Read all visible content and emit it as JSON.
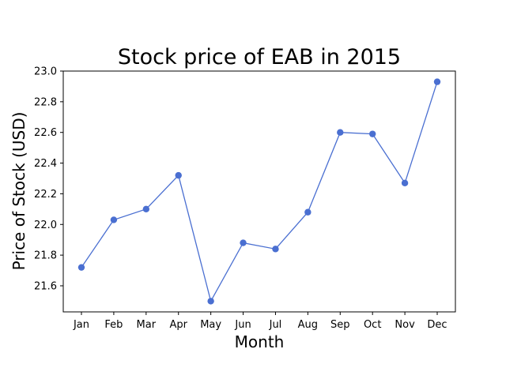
{
  "chart_data": {
    "type": "line",
    "title": "Stock price of EAB in 2015",
    "xlabel": "Month",
    "ylabel": "Price of Stock (USD)",
    "categories": [
      "Jan",
      "Feb",
      "Mar",
      "Apr",
      "May",
      "Jun",
      "Jul",
      "Aug",
      "Sep",
      "Oct",
      "Nov",
      "Dec"
    ],
    "series": [
      {
        "values": [
          21.72,
          22.03,
          22.1,
          22.32,
          21.5,
          21.88,
          21.84,
          22.08,
          22.6,
          22.59,
          22.27,
          22.93
        ],
        "color": "#4a6fd1"
      }
    ],
    "ylim": [
      21.43,
      23.0
    ],
    "yticks": [
      "21.6",
      "21.8",
      "22.0",
      "22.2",
      "22.4",
      "22.6",
      "22.8",
      "23.0"
    ],
    "grid": false,
    "legend": "none"
  }
}
